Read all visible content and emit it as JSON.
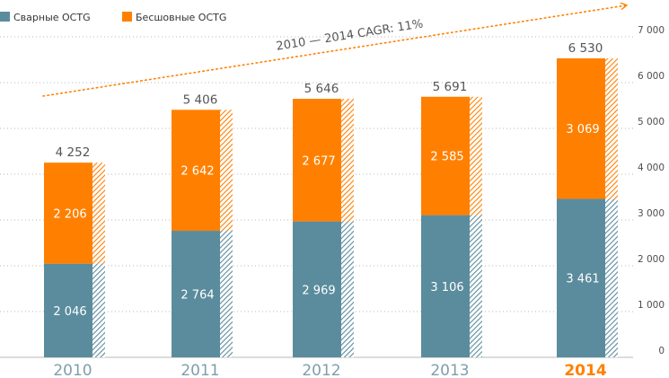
{
  "chart_data": {
    "type": "bar",
    "stacked": true,
    "categories": [
      "2010",
      "2011",
      "2012",
      "2013",
      "2014"
    ],
    "highlight_category": "2014",
    "series": [
      {
        "name": "Сварные OCTG",
        "color": "#5b8c9d",
        "values": [
          2046,
          2764,
          2969,
          3106,
          3461
        ],
        "labels": [
          "2 046",
          "2 764",
          "2 969",
          "3 106",
          "3 461"
        ]
      },
      {
        "name": "Бесшовные OCTG",
        "color": "#ff8000",
        "values": [
          2206,
          2642,
          2677,
          2585,
          3069
        ],
        "labels": [
          "2 206",
          "2 642",
          "2 677",
          "2 585",
          "3 069"
        ]
      }
    ],
    "totals": [
      4252,
      5406,
      5646,
      5691,
      6530
    ],
    "total_labels": [
      "4 252",
      "5 406",
      "5 646",
      "5 691",
      "6 530"
    ],
    "ylim": [
      0,
      7000
    ],
    "ytick_values": [
      0,
      1000,
      2000,
      3000,
      4000,
      5000,
      6000,
      7000
    ],
    "ytick_labels": [
      "0",
      "1 000",
      "2 000",
      "3 000",
      "4 000",
      "5 000",
      "6 000",
      "7 000"
    ],
    "y_axis_side": "right",
    "grid": "horizontal-dotted",
    "legend_position": "top-left",
    "annotation": "2010 — 2014 CAGR: 11%",
    "colors": {
      "grid": "#b8b8b8",
      "axis_text": "#4d4d4d",
      "year_text": "#7e9eab",
      "highlight_text": "#ff8000",
      "total_text": "#555555",
      "segment_text": "#ffffff",
      "arrow": "#ff8000",
      "annotation_text": "#555555"
    }
  }
}
